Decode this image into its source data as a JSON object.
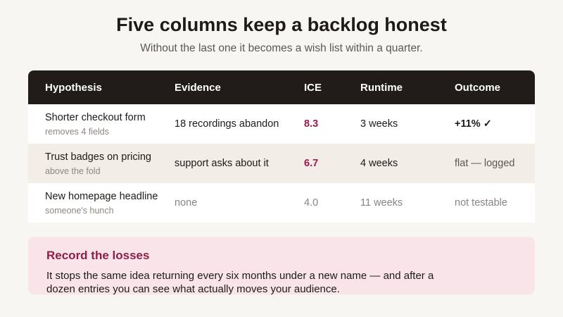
{
  "header": {
    "title": "Five columns keep a backlog honest",
    "subtitle": "Without the last one it becomes a wish list within a quarter."
  },
  "table": {
    "columns": [
      "Hypothesis",
      "Evidence",
      "ICE",
      "Runtime",
      "Outcome"
    ],
    "rows": [
      {
        "hypothesis": "Shorter checkout form",
        "detail": "removes 4 fields",
        "evidence": "18 recordings abandon",
        "ice": "8.3",
        "runtime": "3 weeks",
        "outcome": "+11% ✓"
      },
      {
        "hypothesis": "Trust badges on pricing",
        "detail": "above the fold",
        "evidence": "support asks about it",
        "ice": "6.7",
        "runtime": "4 weeks",
        "outcome": "flat — logged"
      },
      {
        "hypothesis": "New homepage headline",
        "detail": "someone's hunch",
        "evidence": "none",
        "ice": "4.0",
        "runtime": "11 weeks",
        "outcome": "not testable"
      }
    ]
  },
  "callout": {
    "title": "Record the losses",
    "body": "It stops the same idea returning every six months under a new name — and after a dozen entries you can see what actually moves your audience."
  },
  "colors": {
    "header_bg": "#211c19",
    "accent": "#9b1b4e",
    "callout_bg": "#f9e4ea",
    "alt_row": "#f2ede6"
  }
}
